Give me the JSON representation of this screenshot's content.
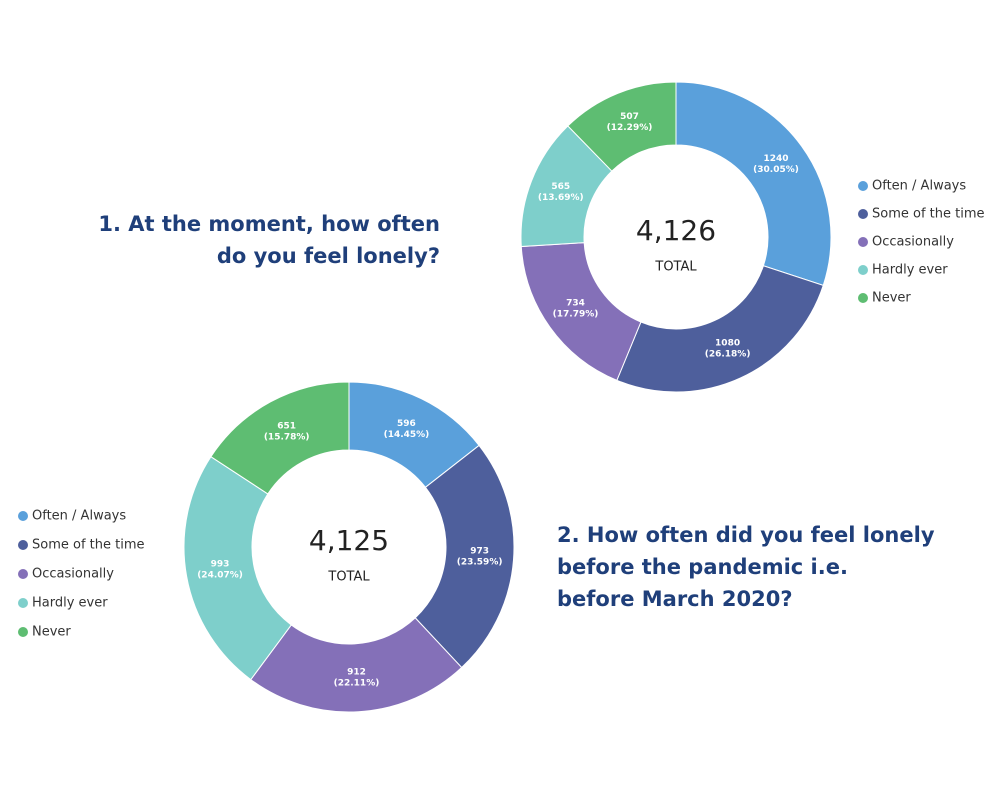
{
  "chart_data": [
    {
      "type": "donut",
      "title_lines": [
        "1. At the moment, how often",
        "do you feel lonely?"
      ],
      "total_label": "4,126",
      "total_caption": "TOTAL",
      "categories": [
        "Often / Always",
        "Some of the time",
        "Occasionally",
        "Hardly ever",
        "Never"
      ],
      "colors": [
        "#5aa0db",
        "#4e5f9c",
        "#8470b8",
        "#7ecfcb",
        "#5ebd72"
      ],
      "values": [
        1240,
        1080,
        734,
        565,
        507
      ],
      "percent_labels": [
        "(30.05%)",
        "(26.18%)",
        "(17.79%)",
        "(13.69%)",
        "(12.29%)"
      ],
      "legend": "right"
    },
    {
      "type": "donut",
      "title_lines": [
        "2. How often did you feel lonely",
        "before the pandemic i.e.",
        "before March 2020?"
      ],
      "total_label": "4,125",
      "total_caption": "TOTAL",
      "categories": [
        "Often / Always",
        "Some of the time",
        "Occasionally",
        "Hardly ever",
        "Never"
      ],
      "colors": [
        "#5aa0db",
        "#4e5f9c",
        "#8470b8",
        "#7ecfcb",
        "#5ebd72"
      ],
      "values": [
        596,
        973,
        912,
        993,
        651
      ],
      "percent_labels": [
        "(14.45%)",
        "(23.59%)",
        "(22.11%)",
        "(24.07%)",
        "(15.78%)"
      ],
      "legend": "left"
    }
  ]
}
